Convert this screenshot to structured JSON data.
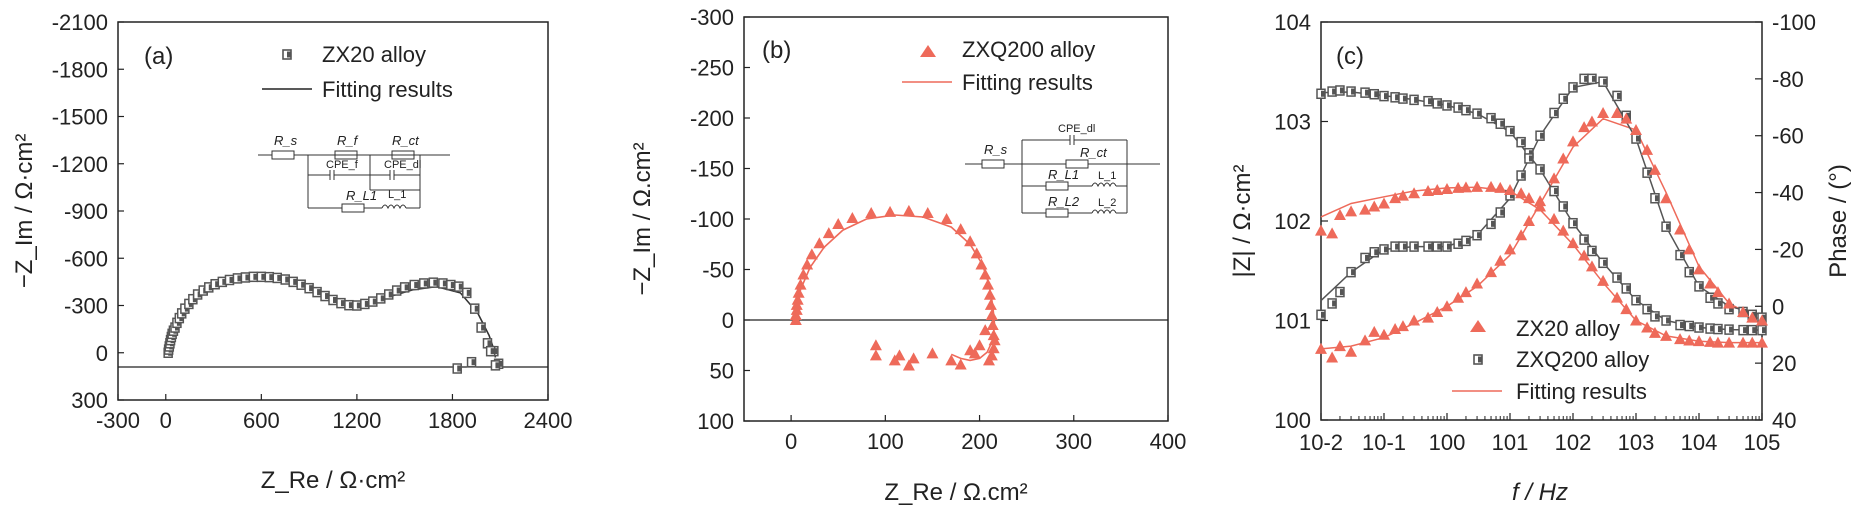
{
  "chart_data": [
    {
      "type": "scatter",
      "panel_label": "(a)",
      "xlabel": "Z_Re / Ω·cm²",
      "ylabel": "−Z_Im / Ω·cm²",
      "xlim": [
        -300,
        2400
      ],
      "ylim": [
        300,
        -2100
      ],
      "x_ticks": [
        "-300",
        "0",
        "600",
        "1200",
        "1800",
        "2400"
      ],
      "y_ticks": [
        "-2100",
        "-1800",
        "-1500",
        "-1200",
        "-900",
        "-600",
        "-300",
        "0",
        "300"
      ],
      "legend": {
        "placement": "top-center",
        "entries": [
          "ZX20 alloy",
          "Fitting results"
        ]
      },
      "circuit": {
        "labels": [
          "R_s",
          "R_f",
          "R_ct",
          "CPE_f",
          "CPE_dl",
          "R_L1",
          "L_1"
        ]
      },
      "series": [
        {
          "name": "ZX20 alloy",
          "marker": "square",
          "color": "#6a6a6a",
          "x": [
            15,
            18,
            22,
            26,
            30,
            35,
            40,
            48,
            58,
            70,
            85,
            100,
            120,
            145,
            170,
            200,
            235,
            270,
            310,
            355,
            400,
            450,
            500,
            550,
            600,
            650,
            700,
            750,
            800,
            850,
            900,
            950,
            1000,
            1050,
            1100,
            1150,
            1200,
            1250,
            1300,
            1350,
            1400,
            1450,
            1500,
            1560,
            1620,
            1680,
            1740,
            1790,
            1840,
            1890,
            1940,
            1980,
            2020,
            2060,
            2090,
            1830,
            1920,
            2040,
            2070
          ],
          "y": [
            0,
            -20,
            -40,
            -60,
            -80,
            -100,
            -120,
            -140,
            -160,
            -190,
            -220,
            -250,
            -280,
            -310,
            -340,
            -370,
            -395,
            -415,
            -435,
            -450,
            -462,
            -472,
            -478,
            -482,
            -482,
            -480,
            -475,
            -465,
            -450,
            -432,
            -410,
            -385,
            -360,
            -335,
            -315,
            -302,
            -300,
            -310,
            -325,
            -345,
            -370,
            -395,
            -415,
            -430,
            -440,
            -445,
            -440,
            -430,
            -420,
            -380,
            -280,
            -160,
            -60,
            -10,
            70,
            100,
            60,
            -10,
            80
          ]
        },
        {
          "name": "Fitting results",
          "line": true,
          "color": "#333333",
          "x": [
            15,
            60,
            150,
            250,
            400,
            600,
            800,
            1000,
            1150,
            1250,
            1400,
            1550,
            1700,
            1850,
            1960,
            2030,
            2060,
            2070
          ],
          "y": [
            0,
            -160,
            -320,
            -410,
            -465,
            -480,
            -445,
            -360,
            -300,
            -300,
            -355,
            -400,
            -420,
            -380,
            -250,
            -110,
            -20,
            30
          ]
        }
      ]
    },
    {
      "type": "scatter",
      "panel_label": "(b)",
      "xlabel": "Z_Re / Ω.cm²",
      "ylabel": "−Z_Im / Ω.cm²",
      "xlim": [
        -50,
        400
      ],
      "ylim": [
        100,
        -300
      ],
      "x_ticks": [
        "0",
        "100",
        "200",
        "300",
        "400"
      ],
      "y_ticks": [
        "-300",
        "-250",
        "-200",
        "-150",
        "-100",
        "-50",
        "0",
        "50",
        "100"
      ],
      "legend": {
        "placement": "top-center",
        "entries": [
          "ZXQ200 alloy",
          "Fitting results"
        ]
      },
      "circuit": {
        "labels": [
          "R_s",
          "CPE_dl",
          "R_ct",
          "R_L1",
          "L_1",
          "R_L2",
          "L_2"
        ]
      },
      "series": [
        {
          "name": "ZXQ200 alloy",
          "marker": "triangle",
          "color": "#ee6a5a",
          "x": [
            5,
            5,
            6,
            6,
            7,
            8,
            10,
            13,
            17,
            22,
            30,
            40,
            50,
            65,
            85,
            105,
            125,
            145,
            165,
            180,
            190,
            197,
            202,
            206,
            209,
            211,
            212,
            213,
            214,
            215,
            216,
            215,
            213,
            210,
            206,
            200,
            195,
            190,
            180,
            170,
            150,
            130,
            110,
            90,
            90,
            115,
            125
          ],
          "y": [
            0,
            -5,
            -10,
            -15,
            -20,
            -27,
            -35,
            -45,
            -55,
            -65,
            -76,
            -86,
            -95,
            -101,
            -106,
            -107,
            -108,
            -106,
            -100,
            -90,
            -78,
            -66,
            -55,
            -45,
            -35,
            -25,
            -15,
            -5,
            5,
            15,
            20,
            28,
            35,
            40,
            10,
            25,
            33,
            30,
            44,
            40,
            33,
            38,
            40,
            35,
            25,
            35,
            45
          ]
        },
        {
          "name": "Fitting results",
          "line": true,
          "color": "#ee6a5a",
          "x": [
            5,
            6,
            10,
            20,
            35,
            55,
            80,
            110,
            140,
            170,
            190,
            203,
            210,
            214,
            216,
            214,
            208,
            200,
            190,
            180,
            170
          ],
          "y": [
            0,
            -10,
            -30,
            -52,
            -72,
            -89,
            -100,
            -104,
            -102,
            -92,
            -75,
            -55,
            -35,
            -15,
            5,
            20,
            32,
            38,
            40,
            38,
            34
          ]
        }
      ]
    },
    {
      "type": "line",
      "panel_label": "(c)",
      "xlabel": "f / Hz",
      "ylabel": "|Z| / Ω·cm²",
      "y2label": "Phase / (°)",
      "x_scale": "log",
      "y_scale": "log",
      "xlim": [
        0.01,
        100000
      ],
      "ylim": [
        1,
        10000
      ],
      "y2lim": [
        40,
        -100
      ],
      "x_ticks": [
        "10-2",
        "10-1",
        "100",
        "101",
        "102",
        "103",
        "104",
        "105"
      ],
      "y_ticks": [
        "100",
        "101",
        "102",
        "103",
        "104"
      ],
      "y2_ticks": [
        "-100",
        "-80",
        "-60",
        "-40",
        "-20",
        "0",
        "20",
        "40"
      ],
      "legend": {
        "placement": "bottom-right",
        "entries": [
          "ZX20 alloy",
          "ZXQ200 alloy",
          "Fitting results"
        ]
      },
      "series": [
        {
          "name": "ZXQ200 alloy",
          "kind": "modulus",
          "marker": "square",
          "color": "#6a6a6a",
          "x": [
            0.01,
            0.015,
            0.02,
            0.03,
            0.05,
            0.07,
            0.1,
            0.15,
            0.2,
            0.3,
            0.5,
            0.7,
            1,
            1.5,
            2,
            3,
            5,
            7,
            10,
            15,
            20,
            30,
            50,
            70,
            100,
            150,
            200,
            300,
            500,
            700,
            1000,
            1500,
            2000,
            3000,
            5000,
            7000,
            10000,
            15000,
            20000,
            30000,
            50000,
            70000,
            100000
          ],
          "y": [
            1900,
            2000,
            2050,
            2000,
            1950,
            1880,
            1800,
            1750,
            1700,
            1650,
            1600,
            1520,
            1450,
            1380,
            1300,
            1200,
            1080,
            950,
            800,
            620,
            480,
            330,
            200,
            140,
            95,
            65,
            50,
            38,
            27,
            21,
            16,
            13,
            11,
            10,
            9,
            8.8,
            8.5,
            8.3,
            8.2,
            8.1,
            8.0,
            8.0,
            8.0
          ]
        },
        {
          "name": "ZXQ200 alloy",
          "kind": "phase",
          "marker": "square",
          "color": "#6a6a6a",
          "x": [
            0.01,
            0.015,
            0.02,
            0.03,
            0.05,
            0.07,
            0.1,
            0.15,
            0.2,
            0.3,
            0.5,
            0.7,
            1,
            1.5,
            2,
            3,
            5,
            7,
            10,
            15,
            20,
            30,
            50,
            70,
            100,
            150,
            200,
            300,
            500,
            700,
            1000,
            1500,
            2000,
            3000,
            5000,
            7000,
            10000,
            15000,
            20000,
            30000,
            50000,
            70000,
            100000
          ],
          "y": [
            3,
            -1,
            -5,
            -12,
            -17,
            -19,
            -20,
            -21,
            -21,
            -21,
            -21,
            -21,
            -21,
            -22,
            -23,
            -25,
            -29,
            -33,
            -39,
            -46,
            -52,
            -60,
            -68,
            -73,
            -77,
            -80,
            -80,
            -79,
            -74,
            -67,
            -59,
            -47,
            -38,
            -28,
            -18,
            -12,
            -7,
            -3,
            -1,
            1,
            2,
            3,
            4
          ]
        },
        {
          "name": "ZX20 alloy",
          "kind": "modulus",
          "marker": "triangle",
          "color": "#ee6a5a",
          "x": [
            0.01,
            0.015,
            0.02,
            0.03,
            0.05,
            0.07,
            0.1,
            0.15,
            0.2,
            0.3,
            0.5,
            0.7,
            1,
            1.5,
            2,
            3,
            5,
            7,
            10,
            15,
            20,
            30,
            50,
            70,
            100,
            150,
            200,
            300,
            500,
            700,
            1000,
            1500,
            2000,
            3000,
            5000,
            7000,
            10000,
            15000,
            20000,
            30000,
            50000,
            70000,
            100000
          ],
          "y": [
            80,
            75,
            115,
            125,
            130,
            140,
            150,
            170,
            180,
            190,
            200,
            205,
            210,
            215,
            218,
            220,
            220,
            215,
            205,
            190,
            170,
            140,
            105,
            80,
            60,
            45,
            35,
            25,
            17,
            13,
            10,
            8.5,
            7.5,
            7,
            6.5,
            6.3,
            6.2,
            6.1,
            6.0,
            6.0,
            6.0,
            6.0,
            6.0
          ]
        },
        {
          "name": "ZX20 alloy",
          "kind": "phase",
          "marker": "triangle",
          "color": "#ee6a5a",
          "x": [
            0.01,
            0.015,
            0.02,
            0.03,
            0.05,
            0.07,
            0.1,
            0.15,
            0.2,
            0.3,
            0.5,
            0.7,
            1,
            1.5,
            2,
            3,
            5,
            7,
            10,
            15,
            20,
            30,
            50,
            70,
            100,
            150,
            200,
            300,
            500,
            700,
            1000,
            1500,
            2000,
            3000,
            5000,
            7000,
            10000,
            15000,
            20000,
            30000,
            50000,
            70000,
            100000
          ],
          "y": [
            15,
            18,
            14,
            16,
            12,
            9,
            10,
            8,
            7,
            5,
            4,
            2,
            0,
            -3,
            -5,
            -8,
            -12,
            -16,
            -20,
            -25,
            -30,
            -37,
            -45,
            -52,
            -58,
            -63,
            -65,
            -68,
            -68,
            -66,
            -62,
            -55,
            -48,
            -38,
            -27,
            -20,
            -13,
            -8,
            -5,
            -1,
            2,
            4,
            5
          ]
        }
      ],
      "fits": [
        {
          "name": "Fitting results",
          "color": "#ee6a5a",
          "kind": "modulus",
          "x": [
            0.01,
            0.03,
            0.1,
            0.3,
            1,
            3,
            10,
            30,
            100,
            300,
            1000,
            3000,
            10000,
            30000,
            100000
          ],
          "y": [
            110,
            150,
            175,
            200,
            215,
            218,
            200,
            130,
            58,
            24,
            10,
            7,
            6.2,
            6.0,
            6.0
          ]
        },
        {
          "name": "Fitting results",
          "color": "#ee6a5a",
          "kind": "phase",
          "x": [
            0.01,
            0.03,
            0.1,
            0.3,
            1,
            3,
            10,
            30,
            100,
            300,
            1000,
            3000,
            10000,
            30000,
            100000
          ],
          "y": [
            15,
            14,
            11,
            6,
            0,
            -7,
            -18,
            -36,
            -56,
            -66,
            -62,
            -40,
            -14,
            -1,
            5
          ]
        },
        {
          "name": "",
          "color": "#555555",
          "kind": "modulus",
          "x": [
            0.01,
            0.03,
            0.1,
            0.3,
            1,
            3,
            10,
            30,
            100,
            300,
            1000,
            3000,
            10000,
            30000,
            100000
          ],
          "y": [
            1950,
            1980,
            1820,
            1660,
            1450,
            1200,
            790,
            330,
            95,
            38,
            16,
            10,
            8.5,
            8.1,
            8.0
          ]
        },
        {
          "name": "",
          "color": "#555555",
          "kind": "phase",
          "x": [
            0.01,
            0.03,
            0.1,
            0.3,
            1,
            3,
            10,
            30,
            100,
            300,
            1000,
            3000,
            10000,
            30000,
            100000
          ],
          "y": [
            -2,
            -12,
            -20,
            -21,
            -21,
            -25,
            -38,
            -60,
            -77,
            -79,
            -59,
            -28,
            -7,
            0,
            3
          ]
        }
      ]
    }
  ]
}
